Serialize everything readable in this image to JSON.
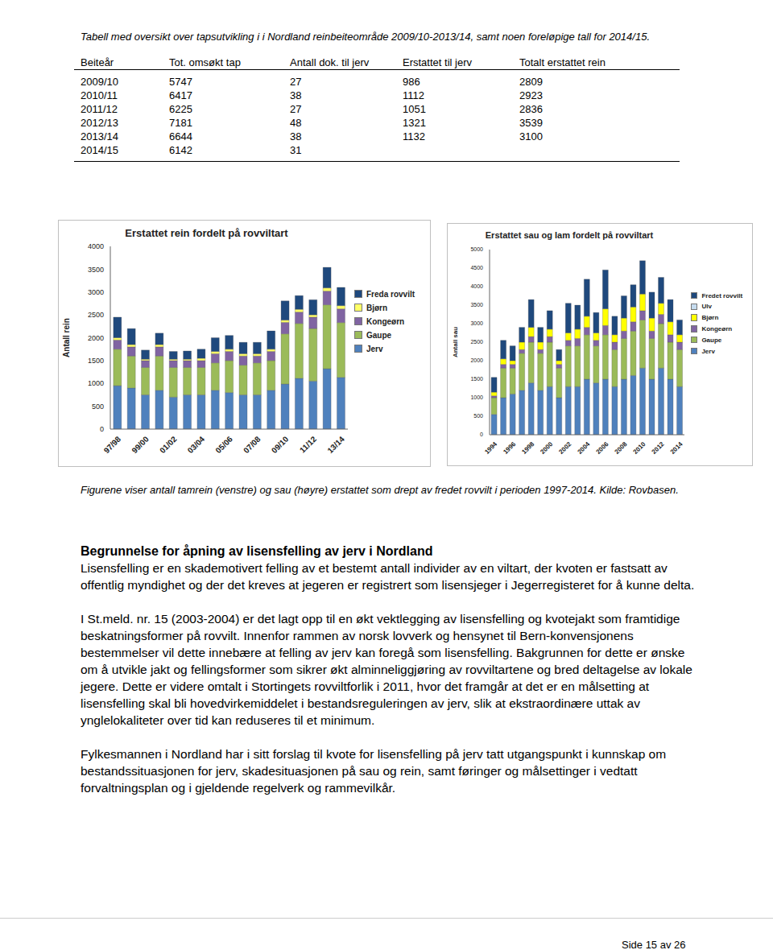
{
  "table_caption": "Tabell med oversikt over tapsutvikling i i Nordland reinbeiteområde 2009/10-2013/14, samt noen foreløpige tall for 2014/15.",
  "table": {
    "headers": [
      "Beiteår",
      "Tot. omsøkt tap",
      "Antall dok. til jerv",
      "Erstattet til jerv",
      "Totalt erstattet rein"
    ],
    "rows": [
      [
        "2009/10",
        5747,
        27,
        986,
        2809
      ],
      [
        "2010/11",
        6417,
        38,
        1112,
        2923
      ],
      [
        "2011/12",
        6225,
        27,
        1051,
        2836
      ],
      [
        "2012/13",
        7181,
        48,
        1321,
        3539
      ],
      [
        "2013/14",
        6644,
        38,
        1132,
        3100
      ],
      [
        "2014/15",
        6142,
        31,
        null,
        null
      ]
    ]
  },
  "chart_data": [
    {
      "type": "bar",
      "title": "Erstattet rein fordelt på rovviltart",
      "y_label": "Antall rein",
      "stacked": true,
      "grid": false,
      "legend": "right",
      "categories": [
        "97/98",
        null,
        "99/00",
        null,
        "01/02",
        null,
        "03/04",
        null,
        "05/06",
        null,
        "07/08",
        null,
        "09/10",
        null,
        "11/12",
        null,
        "13/14"
      ],
      "ylim": [
        0,
        4000
      ],
      "yticks": [
        0,
        500,
        1000,
        1500,
        2000,
        2500,
        3000,
        3500,
        4000
      ],
      "series": [
        {
          "name": "Jerv",
          "color": "#4f81bd",
          "values": [
            950,
            900,
            750,
            850,
            700,
            750,
            750,
            850,
            800,
            750,
            750,
            850,
            986,
            1112,
            1051,
            1321,
            1132
          ]
        },
        {
          "name": "Gaupe",
          "color": "#9bbb59",
          "values": [
            800,
            700,
            600,
            750,
            650,
            600,
            600,
            600,
            700,
            650,
            700,
            650,
            1100,
            1200,
            1150,
            1400,
            1200
          ]
        },
        {
          "name": "Kongeørn",
          "color": "#8064a2",
          "values": [
            200,
            200,
            150,
            200,
            150,
            150,
            150,
            200,
            200,
            200,
            150,
            200,
            250,
            250,
            250,
            300,
            300
          ]
        },
        {
          "name": "Bjørn",
          "color": "#ffff66",
          "values": [
            50,
            50,
            30,
            50,
            30,
            30,
            50,
            50,
            50,
            50,
            50,
            50,
            50,
            60,
            50,
            70,
            70
          ]
        },
        {
          "name": "Freda rovvilt",
          "color": "#1f497d",
          "values": [
            450,
            350,
            200,
            250,
            170,
            180,
            200,
            300,
            300,
            250,
            250,
            400,
            420,
            300,
            330,
            450,
            400
          ]
        }
      ]
    },
    {
      "type": "bar",
      "title": "Erstattet sau og lam fordelt på rovviltart",
      "y_label": "Antall sau",
      "stacked": true,
      "grid": false,
      "legend": "right",
      "categories": [
        "1994",
        null,
        "1996",
        null,
        "1998",
        null,
        "2000",
        null,
        "2002",
        null,
        "2004",
        null,
        "2006",
        null,
        "2008",
        null,
        "2010",
        null,
        "2012",
        null,
        "2014"
      ],
      "ylim": [
        0,
        5000
      ],
      "yticks": [
        0,
        500,
        1000,
        1500,
        2000,
        2500,
        3000,
        3500,
        4000,
        4500,
        5000
      ],
      "series": [
        {
          "name": "Jerv",
          "color": "#4f81bd",
          "values": [
            550,
            1000,
            1100,
            1200,
            1400,
            1200,
            1300,
            1000,
            1300,
            1300,
            1500,
            1400,
            1500,
            1300,
            1500,
            1600,
            1800,
            1500,
            1800,
            1500,
            1300
          ]
        },
        {
          "name": "Gaupe",
          "color": "#9bbb59",
          "values": [
            450,
            800,
            700,
            1000,
            1100,
            1000,
            1200,
            800,
            1100,
            1100,
            1200,
            1000,
            1200,
            1000,
            1100,
            1200,
            1300,
            1100,
            1200,
            1000,
            1000
          ]
        },
        {
          "name": "Kongeørn",
          "color": "#8064a2",
          "values": [
            50,
            100,
            100,
            100,
            150,
            100,
            150,
            100,
            150,
            200,
            200,
            150,
            250,
            200,
            200,
            250,
            250,
            200,
            250,
            200,
            200
          ]
        },
        {
          "name": "Bjørn",
          "color": "#ffff00",
          "values": [
            100,
            150,
            100,
            200,
            250,
            200,
            200,
            100,
            200,
            250,
            300,
            200,
            450,
            200,
            350,
            400,
            450,
            350,
            300,
            350,
            200
          ]
        },
        {
          "name": "Ulv",
          "color": "#c6dcef",
          "values": [
            0,
            0,
            0,
            0,
            0,
            0,
            0,
            0,
            0,
            0,
            0,
            0,
            0,
            0,
            0,
            0,
            0,
            0,
            0,
            0,
            0
          ]
        },
        {
          "name": "Fredet rovvilt",
          "color": "#1f497d",
          "values": [
            400,
            500,
            400,
            400,
            750,
            400,
            500,
            300,
            800,
            650,
            1000,
            550,
            1050,
            500,
            600,
            600,
            900,
            700,
            700,
            600,
            400
          ]
        }
      ]
    }
  ],
  "figure_caption": "Figurene viser antall tamrein (venstre) og sau (høyre) erstattet som drept av fredet rovvilt i perioden 1997-2014. Kilde: Rovbasen.",
  "heading": "Begrunnelse for åpning av lisensfelling av jerv i Nordland",
  "paragraphs": [
    "Lisensfelling er en skademotivert felling av et bestemt antall individer av en viltart, der kvoten er fastsatt av offentlig myndighet og der det kreves at jegeren er registrert som lisensjeger i Jegerregisteret for å kunne delta.",
    "I St.meld. nr. 15 (2003-2004) er det lagt opp til en økt vektlegging av lisensfelling og kvotejakt som framtidige beskatningsformer på rovvilt. Innenfor rammen av norsk lovverk og hensynet til Bern-konvensjonens bestemmelser vil dette innebære at felling av jerv kan foregå som lisensfelling. Bakgrunnen for dette er ønske om å utvikle jakt og fellingsformer som sikrer økt alminneliggjøring av rovviltartene og bred deltagelse av lokale jegere. Dette er videre omtalt i Stortingets rovviltforlik i 2011, hvor det framgår at det er en målsetting at lisensfelling skal bli hovedvirkemiddelet i bestandsreguleringen av jerv, slik at ekstraordinære uttak av ynglelokaliteter over tid kan reduseres til et minimum.",
    "Fylkesmannen i Nordland har i sitt forslag til kvote for lisensfelling på jerv tatt utgangspunkt i kunnskap om bestandssituasjonen for jerv, skadesituasjonen på sau og rein, samt føringer og målsettinger i vedtatt forvaltningsplan og i gjeldende regelverk og rammevilkår."
  ],
  "footer": "Side 15 av 26"
}
